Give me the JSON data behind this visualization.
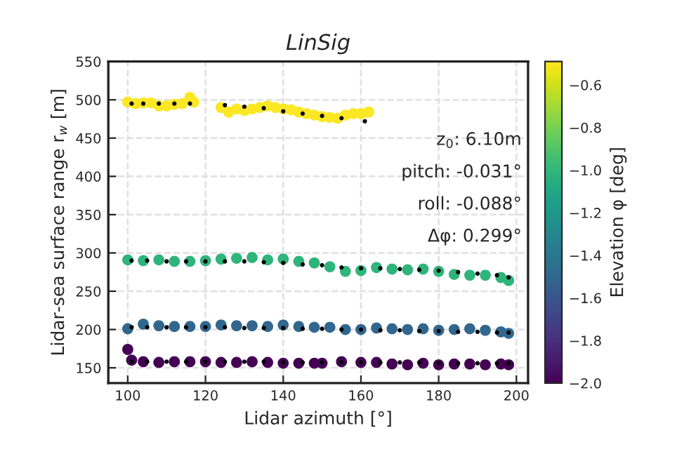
{
  "chart_data": {
    "type": "scatter",
    "title": "LinSig",
    "xlabel": "Lidar azimuth [°]",
    "ylabel": "Lidar-sea surface range r$_{w}$ [m]",
    "clabel": "Elevation φ [deg]",
    "xlim": [
      95,
      203
    ],
    "xticks": [
      100,
      120,
      140,
      160,
      180,
      200
    ],
    "ylim": [
      130,
      550
    ],
    "yticks": [
      150,
      200,
      250,
      300,
      350,
      400,
      450,
      500,
      550
    ],
    "clim": [
      -2.0,
      -0.49
    ],
    "cticks": [
      {
        "value": -2.0,
        "label": "−2.0"
      },
      {
        "value": -1.8,
        "label": "−1.8"
      },
      {
        "value": -1.6,
        "label": "−1.6"
      },
      {
        "value": -1.4,
        "label": "−1.4"
      },
      {
        "value": -1.2,
        "label": "−1.2"
      },
      {
        "value": -1.0,
        "label": "−1.0"
      },
      {
        "value": -0.8,
        "label": "−0.8"
      },
      {
        "value": -0.6,
        "label": "−0.6"
      }
    ],
    "grid": true,
    "legend": false,
    "marker": "circle",
    "annotations": [
      "z$_{0}$: 6.10m",
      "pitch: -0.031°",
      "roll: -0.088°",
      "Δφ: 0.299°"
    ],
    "series": [
      {
        "x": [
          100,
          102,
          104,
          106,
          108,
          110,
          112,
          114,
          116,
          117,
          124,
          126,
          128,
          130,
          132,
          134,
          136,
          138,
          140,
          142,
          144,
          146,
          148,
          150,
          152,
          154,
          156,
          158,
          160,
          162
        ],
        "values": [
          497,
          495,
          496,
          496,
          492,
          492,
          494,
          495,
          503,
          497,
          490,
          484,
          488,
          486,
          488,
          490,
          492,
          490,
          488,
          487,
          484,
          482,
          480,
          478,
          477,
          476,
          480,
          482,
          482,
          484
        ],
        "cvalues": [
          -0.5,
          -0.5,
          -0.5,
          -0.5,
          -0.5,
          -0.5,
          -0.5,
          -0.5,
          -0.5,
          -0.5,
          -0.5,
          -0.5,
          -0.5,
          -0.5,
          -0.5,
          -0.5,
          -0.5,
          -0.5,
          -0.5,
          -0.5,
          -0.5,
          -0.5,
          -0.5,
          -0.5,
          -0.5,
          -0.5,
          -0.5,
          -0.5,
          -0.5,
          -0.5
        ]
      },
      {
        "x": [
          100,
          104,
          108,
          112,
          116,
          120,
          124,
          128,
          132,
          136,
          140,
          144,
          148,
          152,
          156,
          160,
          164,
          168,
          172,
          176,
          180,
          184,
          188,
          192,
          196,
          198
        ],
        "values": [
          291,
          290,
          291,
          289,
          289,
          290,
          292,
          293,
          294,
          291,
          292,
          289,
          287,
          282,
          276,
          277,
          281,
          279,
          278,
          279,
          276,
          272,
          271,
          271,
          268,
          264
        ],
        "cvalues": [
          -1.02,
          -1.02,
          -1.02,
          -1.02,
          -1.02,
          -1.02,
          -1.02,
          -1.02,
          -1.02,
          -1.02,
          -1.02,
          -1.02,
          -1.02,
          -1.02,
          -1.02,
          -1.02,
          -1.02,
          -1.02,
          -1.02,
          -1.02,
          -1.02,
          -1.02,
          -1.02,
          -1.02,
          -1.02,
          -1.02
        ]
      },
      {
        "x": [
          100,
          104,
          108,
          112,
          116,
          120,
          124,
          128,
          132,
          136,
          140,
          144,
          148,
          152,
          156,
          160,
          164,
          168,
          172,
          176,
          180,
          184,
          188,
          192,
          196,
          198
        ],
        "values": [
          201,
          207,
          205,
          204,
          204,
          204,
          206,
          205,
          205,
          204,
          206,
          204,
          203,
          203,
          200,
          200,
          202,
          201,
          200,
          201,
          199,
          200,
          201,
          199,
          197,
          195
        ],
        "cvalues": [
          -1.5,
          -1.5,
          -1.5,
          -1.5,
          -1.5,
          -1.5,
          -1.5,
          -1.5,
          -1.5,
          -1.5,
          -1.5,
          -1.5,
          -1.5,
          -1.5,
          -1.5,
          -1.5,
          -1.5,
          -1.5,
          -1.5,
          -1.5,
          -1.5,
          -1.5,
          -1.5,
          -1.5,
          -1.5,
          -1.5
        ]
      },
      {
        "x": [
          100,
          101,
          104,
          108,
          112,
          116,
          120,
          124,
          128,
          132,
          136,
          140,
          144,
          148,
          150,
          155,
          160,
          164,
          168,
          172,
          176,
          180,
          184,
          188,
          192,
          196,
          198
        ],
        "values": [
          174,
          160,
          158,
          157,
          158,
          158,
          158,
          157,
          157,
          158,
          157,
          156,
          156,
          156,
          156,
          158,
          157,
          157,
          155,
          154,
          156,
          154,
          155,
          155,
          154,
          155,
          154
        ],
        "cvalues": [
          -2.0,
          -2.0,
          -2.0,
          -2.0,
          -2.0,
          -2.0,
          -2.0,
          -2.0,
          -2.0,
          -2.0,
          -2.0,
          -2.0,
          -2.0,
          -2.0,
          -2.0,
          -2.0,
          -2.0,
          -2.0,
          -2.0,
          -2.0,
          -2.0,
          -2.0,
          -2.0,
          -2.0,
          -2.0,
          -2.0,
          -2.0
        ]
      },
      {
        "color": "#000000",
        "x": [
          101,
          104,
          108,
          112,
          116,
          125,
          130,
          135,
          140,
          145,
          150,
          155,
          161
        ],
        "values": [
          495,
          495,
          495,
          495,
          495,
          493,
          491,
          489,
          485,
          482,
          479,
          476,
          472
        ]
      },
      {
        "color": "#000000",
        "x": [
          101,
          105,
          110,
          115,
          120,
          125,
          130,
          135,
          140,
          145,
          150,
          155,
          160,
          165,
          170,
          175,
          180,
          185,
          190,
          195,
          198
        ],
        "values": [
          290,
          290,
          289,
          289,
          289,
          289,
          289,
          288,
          287,
          285,
          284,
          281,
          280,
          280,
          279,
          278,
          277,
          275,
          273,
          271,
          268
        ]
      },
      {
        "color": "#000000",
        "x": [
          101,
          105,
          110,
          115,
          120,
          125,
          130,
          135,
          140,
          145,
          150,
          155,
          160,
          165,
          170,
          175,
          180,
          185,
          190,
          195,
          198
        ],
        "values": [
          203,
          203,
          203,
          203,
          203,
          203,
          202,
          202,
          202,
          201,
          201,
          200,
          200,
          199,
          199,
          198,
          198,
          197,
          197,
          196,
          196
        ]
      },
      {
        "color": "#000000",
        "x": [
          101,
          105,
          110,
          115,
          120,
          125,
          130,
          135,
          140,
          145,
          150,
          155,
          160,
          165,
          170,
          175,
          180,
          185,
          190,
          195,
          198
        ],
        "values": [
          158,
          158,
          158,
          158,
          158,
          158,
          158,
          158,
          157,
          157,
          157,
          157,
          157,
          157,
          157,
          157,
          156,
          156,
          156,
          156,
          156
        ]
      }
    ]
  }
}
